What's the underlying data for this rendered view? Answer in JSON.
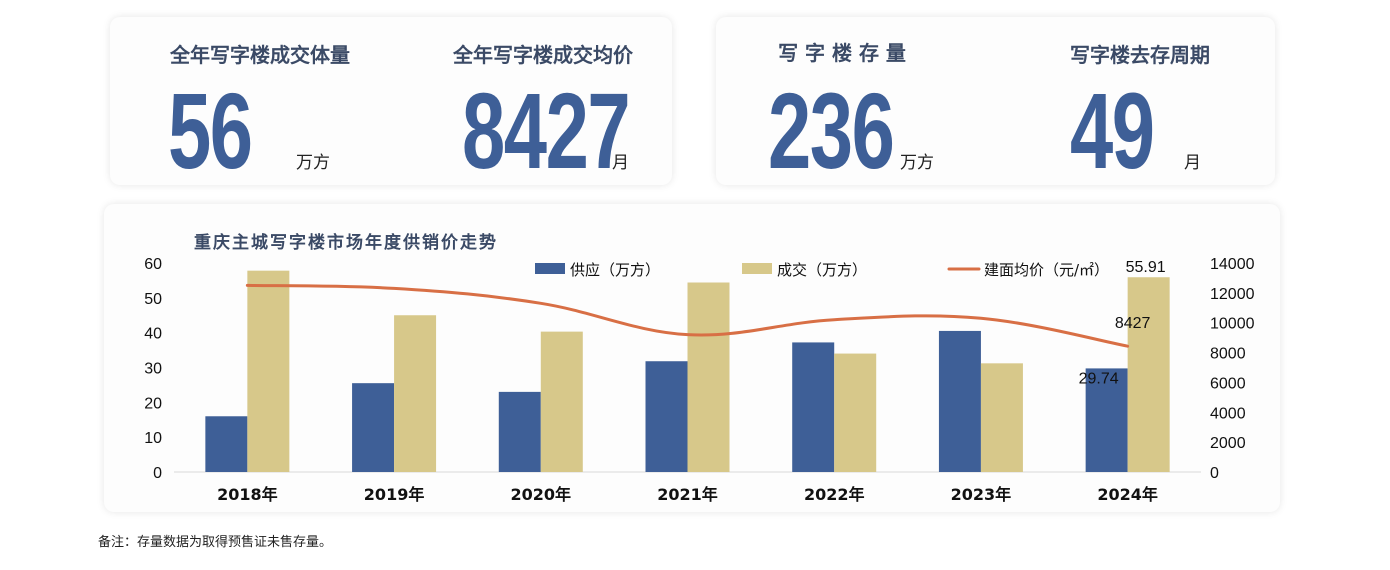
{
  "kpis": {
    "left": [
      {
        "label": "全年写字楼成交体量",
        "value": "56",
        "unit": "万方"
      },
      {
        "label": "全年写字楼成交均价",
        "value": "8427",
        "unit": "月"
      }
    ],
    "right": [
      {
        "label": "写 字 楼 存 量",
        "value": "236",
        "unit": "万方"
      },
      {
        "label": "写字楼去存周期",
        "value": "49",
        "unit": "月"
      }
    ]
  },
  "note": "备注：存量数据为取得预售证未售存量。",
  "colors": {
    "supply": "#3e5f97",
    "deal": "#d7c88a",
    "price": "#d86f45"
  },
  "chart_data": {
    "type": "bar",
    "title": "重庆主城写字楼市场年度供销价走势",
    "categories": [
      "2018年",
      "2019年",
      "2020年",
      "2021年",
      "2022年",
      "2023年",
      "2024年"
    ],
    "series": [
      {
        "name": "供应（万方）",
        "type": "bar",
        "axis": "left",
        "values": [
          16,
          25.5,
          23,
          31.8,
          37.2,
          40.5,
          29.74
        ]
      },
      {
        "name": "成交（万方）",
        "type": "bar",
        "axis": "left",
        "values": [
          57.8,
          45,
          40.3,
          54.4,
          34,
          31.2,
          55.91
        ]
      },
      {
        "name": "建面均价（元/㎡）",
        "type": "line",
        "axis": "right",
        "values": [
          12500,
          12300,
          11300,
          9200,
          10200,
          10300,
          8427
        ]
      }
    ],
    "ylim": [
      0,
      60
    ],
    "yticks": [
      0,
      10,
      20,
      30,
      40,
      50,
      60
    ],
    "y2lim": [
      0,
      14000
    ],
    "y2ticks": [
      0,
      2000,
      4000,
      6000,
      8000,
      10000,
      12000,
      14000
    ],
    "data_labels": [
      {
        "series": 0,
        "index": 6,
        "text": "29.74"
      },
      {
        "series": 1,
        "index": 6,
        "text": "55.91"
      },
      {
        "series": 2,
        "index": 6,
        "text": "8427"
      }
    ],
    "legend": "top"
  }
}
